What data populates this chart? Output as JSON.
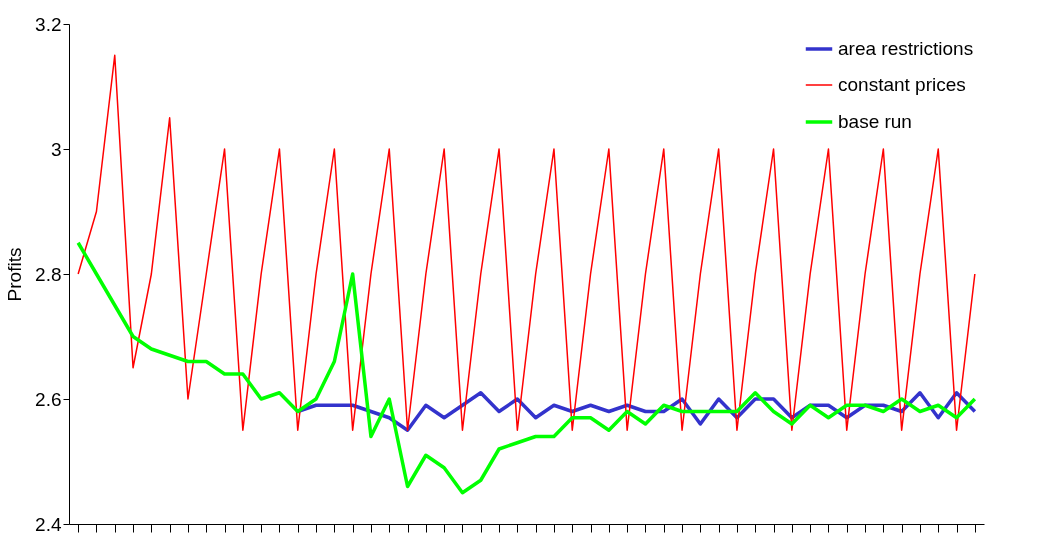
{
  "chart_data": {
    "type": "line",
    "ylabel": "Profits",
    "categories": [
      null,
      null,
      null,
      null,
      null,
      null,
      null,
      null,
      null,
      null,
      null,
      null,
      null,
      null,
      null,
      null,
      null,
      null,
      null,
      null,
      null,
      null,
      null,
      null,
      null,
      null,
      null,
      null,
      null,
      null,
      null,
      null,
      null,
      null,
      null,
      null,
      null,
      null,
      null,
      null,
      null,
      null,
      null,
      null,
      null,
      null,
      null,
      null,
      null,
      null
    ],
    "ylim": [
      2.4,
      3.2
    ],
    "yticks": [
      2.4,
      2.6,
      2.8,
      3,
      3.2
    ],
    "grid": false,
    "legend": "top right",
    "line_style": "solid",
    "marker": "none",
    "tick_labels": "y",
    "series": [
      {
        "name": "area restrictions",
        "color": "#3333cc",
        "values": [
          null,
          null,
          null,
          null,
          null,
          null,
          null,
          null,
          null,
          null,
          null,
          null,
          2.58,
          2.59,
          2.59,
          2.59,
          2.58,
          2.57,
          2.55,
          2.59,
          2.57,
          2.59,
          2.61,
          2.58,
          2.6,
          2.57,
          2.59,
          2.58,
          2.59,
          2.58,
          2.59,
          2.58,
          2.58,
          2.6,
          2.56,
          2.6,
          2.57,
          2.6,
          2.6,
          2.57,
          2.59,
          2.59,
          2.57,
          2.59,
          2.59,
          2.58,
          2.61,
          2.57,
          2.61,
          2.58
        ]
      },
      {
        "name": "constant prices",
        "color": "#ff0000",
        "values": [
          2.8,
          2.9,
          3.15,
          2.65,
          2.8,
          3.05,
          2.6,
          2.8,
          3.0,
          2.55,
          2.8,
          3.0,
          2.55,
          2.8,
          3.0,
          2.55,
          2.8,
          3.0,
          2.55,
          2.8,
          3.0,
          2.55,
          2.8,
          3.0,
          2.55,
          2.8,
          3.0,
          2.55,
          2.8,
          3.0,
          2.55,
          2.8,
          3.0,
          2.55,
          2.8,
          3.0,
          2.55,
          2.8,
          3.0,
          2.55,
          2.8,
          3.0,
          2.55,
          2.8,
          3.0,
          2.55,
          2.8,
          3.0,
          2.55,
          2.8
        ]
      },
      {
        "name": "base run",
        "color": "#00ff00",
        "values": [
          2.85,
          2.8,
          2.75,
          2.7,
          2.68,
          2.67,
          2.66,
          2.66,
          2.64,
          2.64,
          2.6,
          2.61,
          2.58,
          2.6,
          2.66,
          2.8,
          2.54,
          2.6,
          2.46,
          2.51,
          2.49,
          2.45,
          2.47,
          2.52,
          2.53,
          2.54,
          2.54,
          2.57,
          2.57,
          2.55,
          2.58,
          2.56,
          2.59,
          2.58,
          2.58,
          2.58,
          2.58,
          2.61,
          2.58,
          2.56,
          2.59,
          2.57,
          2.59,
          2.59,
          2.58,
          2.6,
          2.58,
          2.59,
          2.57,
          2.6
        ]
      }
    ]
  }
}
